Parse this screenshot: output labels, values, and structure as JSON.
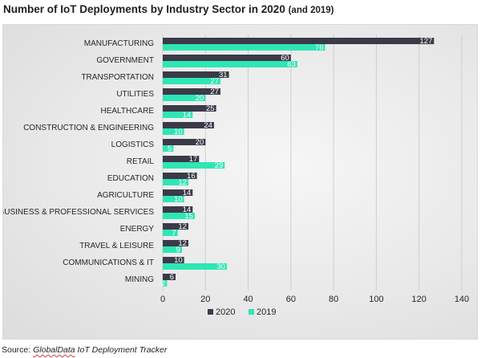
{
  "title_main": "Number of IoT Deployments by Industry Sector in 2020",
  "title_suffix": "(and 2019)",
  "source": {
    "prefix": "Source: ",
    "name": "GlobalData",
    "suffix": " IoT Deployment Tracker"
  },
  "colors": {
    "s2020": "#3b3a48",
    "s2019": "#2ee6b4",
    "grid": "#cfcfcf",
    "text": "#262626"
  },
  "chart_data": {
    "type": "bar",
    "orientation": "horizontal",
    "title": "Number of IoT Deployments by Industry Sector in 2020 (and 2019)",
    "categories": [
      "MANUFACTURING",
      "GOVERNMENT",
      "TRANSPORTATION",
      "UTILITIES",
      "HEALTHCARE",
      "CONSTRUCTION & ENGINEERING",
      "LOGISTICS",
      "RETAIL",
      "EDUCATION",
      "AGRICULTURE",
      "BUSINESS & PROFESSIONAL SERVICES",
      "ENERGY",
      "TRAVEL & LEISURE",
      "COMMUNICATIONS & IT",
      "MINING"
    ],
    "series": [
      {
        "name": "2020",
        "values": [
          127,
          60,
          31,
          27,
          25,
          24,
          20,
          17,
          16,
          14,
          14,
          12,
          12,
          10,
          6
        ]
      },
      {
        "name": "2019",
        "values": [
          76,
          63,
          27,
          20,
          14,
          10,
          5,
          29,
          12,
          10,
          15,
          7,
          9,
          30,
          2
        ]
      }
    ],
    "xlim": [
      0,
      140
    ],
    "xticks": [
      0,
      20,
      40,
      60,
      80,
      100,
      120,
      140
    ],
    "grid": true,
    "legend": "bottom",
    "data_labels": true
  }
}
